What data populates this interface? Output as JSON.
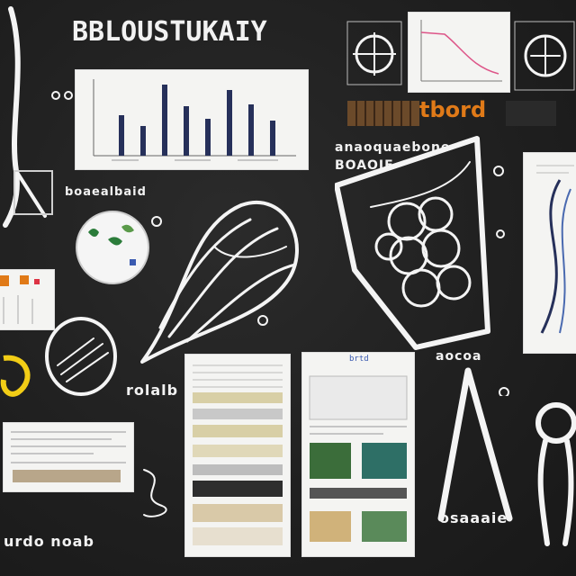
{
  "board": {
    "title": "BBLOUSTUKAIY",
    "label_top_left_card": "boaealbaid",
    "label_mid_right_1": "anaoquaebone",
    "label_mid_right_2": "BOAOIE",
    "label_bottom_left_1": "rolalb",
    "label_bottom_left_2": "urdo noab",
    "label_bottom_right_1": "aocoa",
    "label_bottom_right_2": "osaaaie",
    "small_card_title": "tbord",
    "small_card_heading": "brtd",
    "colors": {
      "background": "#1f1f1f",
      "chalk": "#f4f4f4",
      "accent_orange": "#e07a18",
      "accent_navy": "#26305a",
      "accent_yellow": "#f2cd16"
    }
  }
}
